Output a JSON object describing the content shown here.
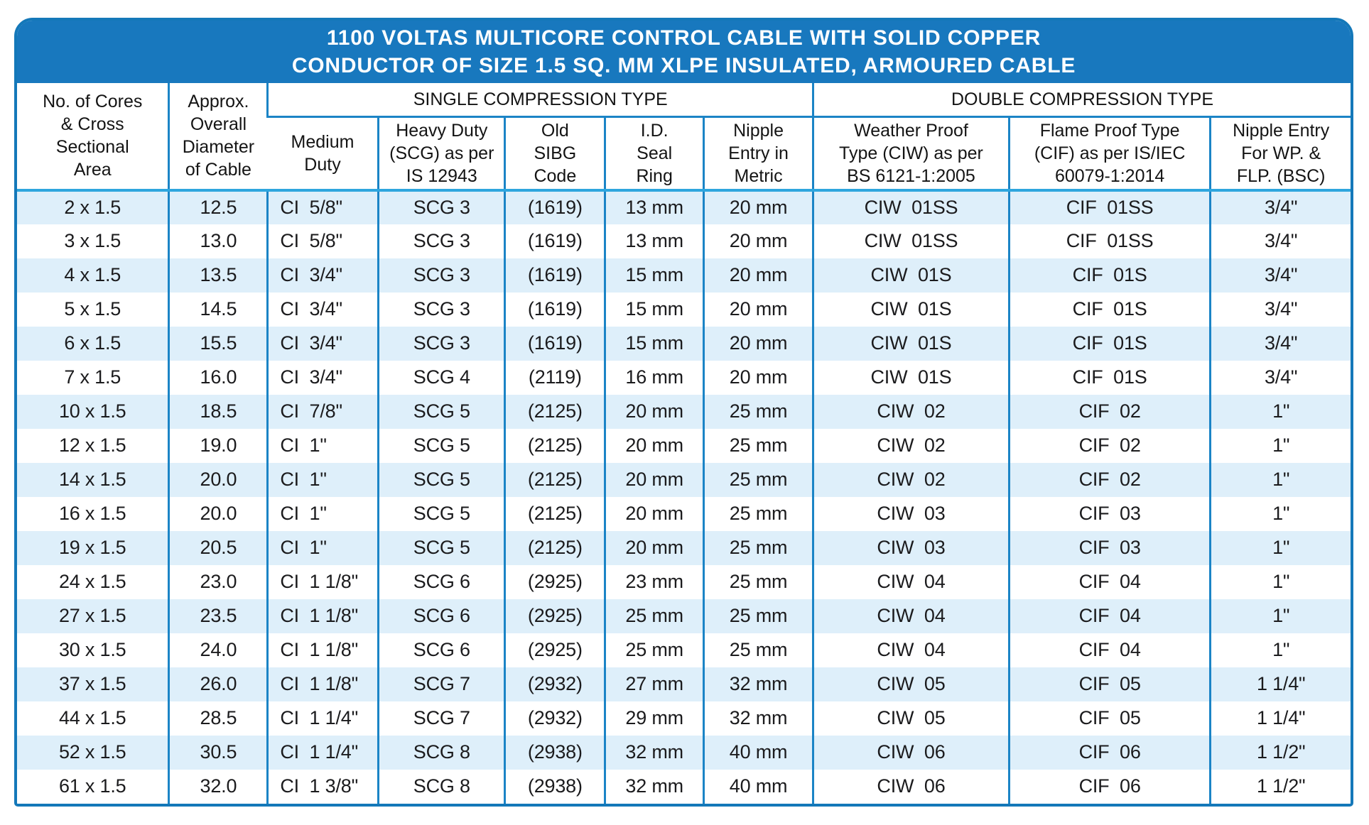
{
  "title": {
    "text": "1100 VOLTAS MULTICORE CONTROL CABLE WITH SOLID COPPER\nCONDUCTOR OF SIZE 1.5 SQ. MM XLPE INSULATED, ARMOURED CABLE"
  },
  "colors": {
    "header_blue": "#1878be",
    "border_blue": "#1b84c6",
    "separator_cyan": "#2ea6de",
    "stripe_light_blue": "#deeffa",
    "text_dark": "#1b1b1d"
  },
  "table": {
    "row_headers": {
      "cores_area": "No. of Cores\n& Cross\nSectional\nArea",
      "overall_diameter": "Approx.\nOverall\nDiameter\nof Cable"
    },
    "groups": {
      "single_compression": "SINGLE COMPRESSION TYPE",
      "double_compression": "DOUBLE COMPRESSION TYPE"
    },
    "sub_headers": {
      "medium_duty": "Medium\nDuty",
      "heavy_duty": "Heavy Duty\n(SCG) as per\nIS 12943",
      "old_sibg_code": "Old\nSIBG\nCode",
      "id_seal_ring": "I.D.\nSeal\nRing",
      "nipple_entry_metric": "Nipple\nEntry in\nMetric",
      "weather_proof": "Weather Proof\nType (CIW) as per\nBS 6121-1:2005",
      "flame_proof": "Flame Proof Type\n(CIF) as per IS/IEC\n60079-1:2014",
      "nipple_entry_wp_flp": "Nipple Entry\nFor WP. &\nFLP. (BSC)"
    },
    "rows": [
      [
        "2 x 1.5",
        "12.5",
        "CI  5/8\"",
        "SCG 3",
        "(1619)",
        "13 mm",
        "20 mm",
        "CIW  01SS",
        "CIF  01SS",
        "3/4\""
      ],
      [
        "3 x 1.5",
        "13.0",
        "CI  5/8\"",
        "SCG 3",
        "(1619)",
        "13 mm",
        "20 mm",
        "CIW  01SS",
        "CIF  01SS",
        "3/4\""
      ],
      [
        "4 x 1.5",
        "13.5",
        "CI  3/4\"",
        "SCG 3",
        "(1619)",
        "15 mm",
        "20 mm",
        "CIW  01S",
        "CIF  01S",
        "3/4\""
      ],
      [
        "5 x 1.5",
        "14.5",
        "CI  3/4\"",
        "SCG 3",
        "(1619)",
        "15 mm",
        "20 mm",
        "CIW  01S",
        "CIF  01S",
        "3/4\""
      ],
      [
        "6 x 1.5",
        "15.5",
        "CI  3/4\"",
        "SCG 3",
        "(1619)",
        "15 mm",
        "20 mm",
        "CIW  01S",
        "CIF  01S",
        "3/4\""
      ],
      [
        "7 x 1.5",
        "16.0",
        "CI  3/4\"",
        "SCG 4",
        "(2119)",
        "16 mm",
        "20 mm",
        "CIW  01S",
        "CIF  01S",
        "3/4\""
      ],
      [
        "10 x 1.5",
        "18.5",
        "CI  7/8\"",
        "SCG 5",
        "(2125)",
        "20 mm",
        "25 mm",
        "CIW  02",
        "CIF  02",
        "1\""
      ],
      [
        "12 x 1.5",
        "19.0",
        "CI  1\"",
        "SCG 5",
        "(2125)",
        "20 mm",
        "25 mm",
        "CIW  02",
        "CIF  02",
        "1\""
      ],
      [
        "14 x 1.5",
        "20.0",
        "CI  1\"",
        "SCG 5",
        "(2125)",
        "20 mm",
        "25 mm",
        "CIW  02",
        "CIF  02",
        "1\""
      ],
      [
        "16 x 1.5",
        "20.0",
        "CI  1\"",
        "SCG 5",
        "(2125)",
        "20 mm",
        "25 mm",
        "CIW  03",
        "CIF  03",
        "1\""
      ],
      [
        "19 x 1.5",
        "20.5",
        "CI  1\"",
        "SCG 5",
        "(2125)",
        "20 mm",
        "25 mm",
        "CIW  03",
        "CIF  03",
        "1\""
      ],
      [
        "24 x 1.5",
        "23.0",
        "CI  1 1/8\"",
        "SCG 6",
        "(2925)",
        "23 mm",
        "25 mm",
        "CIW  04",
        "CIF  04",
        "1\""
      ],
      [
        "27 x 1.5",
        "23.5",
        "CI  1 1/8\"",
        "SCG 6",
        "(2925)",
        "25 mm",
        "25 mm",
        "CIW  04",
        "CIF  04",
        "1\""
      ],
      [
        "30 x 1.5",
        "24.0",
        "CI  1 1/8\"",
        "SCG 6",
        "(2925)",
        "25 mm",
        "25 mm",
        "CIW  04",
        "CIF  04",
        "1\""
      ],
      [
        "37 x 1.5",
        "26.0",
        "CI  1 1/8\"",
        "SCG 7",
        "(2932)",
        "27 mm",
        "32 mm",
        "CIW  05",
        "CIF  05",
        "1 1/4\""
      ],
      [
        "44 x 1.5",
        "28.5",
        "CI  1 1/4\"",
        "SCG 7",
        "(2932)",
        "29 mm",
        "32 mm",
        "CIW  05",
        "CIF  05",
        "1 1/4\""
      ],
      [
        "52 x 1.5",
        "30.5",
        "CI  1 1/4\"",
        "SCG 8",
        "(2938)",
        "32 mm",
        "40 mm",
        "CIW  06",
        "CIF  06",
        "1 1/2\""
      ],
      [
        "61 x 1.5",
        "32.0",
        "CI  1 3/8\"",
        "SCG 8",
        "(2938)",
        "32 mm",
        "40 mm",
        "CIW  06",
        "CIF  06",
        "1 1/2\""
      ]
    ]
  }
}
